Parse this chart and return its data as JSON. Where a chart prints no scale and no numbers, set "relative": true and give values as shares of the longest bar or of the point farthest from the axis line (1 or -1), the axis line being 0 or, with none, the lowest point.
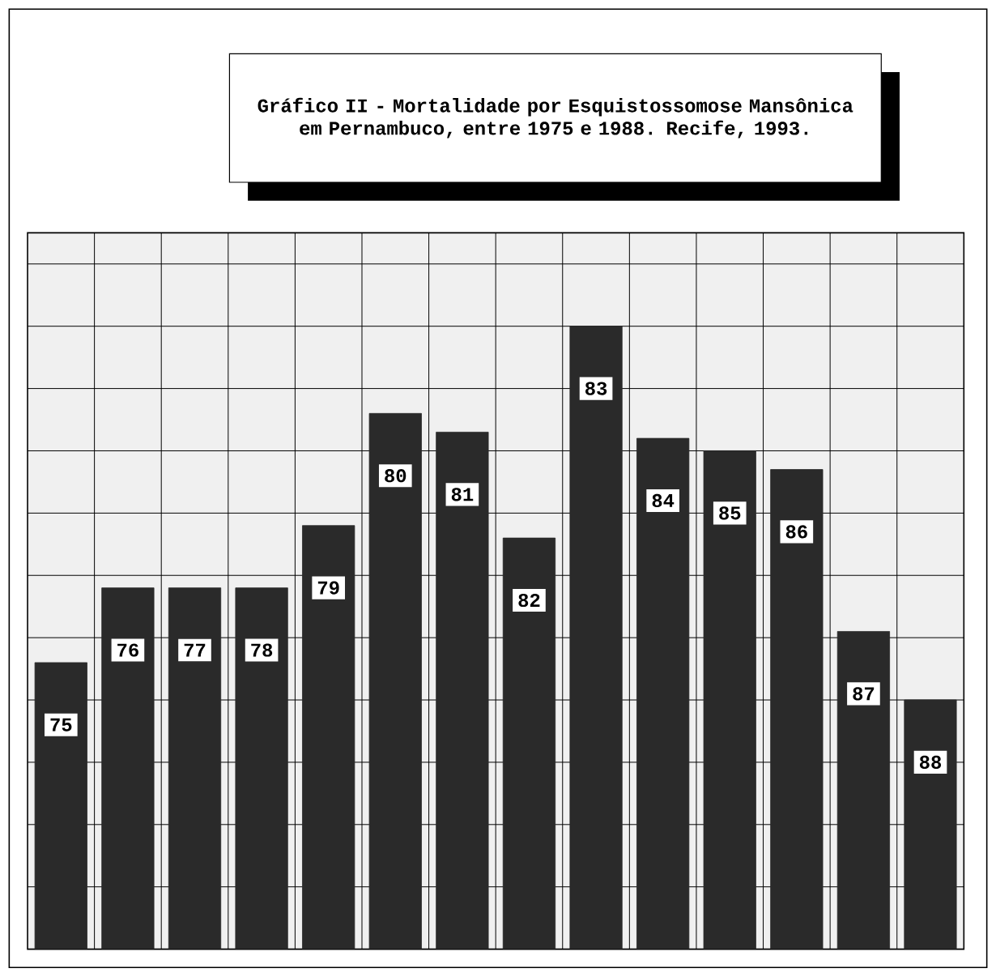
{
  "chart_data": {
    "type": "bar",
    "title": "Gráfico II - Mortalidade por Esquistossomose Mansônica em Pernambuco, entre 1975 e 1988. Recife, 1993.",
    "categories": [
      "75",
      "76",
      "77",
      "78",
      "79",
      "80",
      "81",
      "82",
      "83",
      "84",
      "85",
      "86",
      "87",
      "88"
    ],
    "values": [
      0.46,
      0.58,
      0.58,
      0.58,
      0.68,
      0.86,
      0.83,
      0.66,
      1,
      0.82,
      0.8,
      0.77,
      0.51,
      0.4
    ],
    "color": "#2a2a2a",
    "relative": true,
    "grid": true
  }
}
